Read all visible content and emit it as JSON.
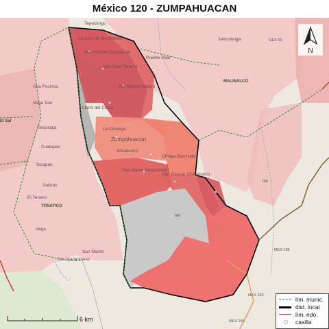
{
  "title": "México 120 - ZUMPAHUACAN",
  "place_labels": [
    "Tepetzingo",
    "La Cruz de los Pilares",
    "San Antonio Guadalupe",
    "San José Tenería",
    "Puente Palo",
    "Jalmolonga",
    "MALINALCO",
    "San Miguel Atenco",
    "Llano del Copal",
    "La Ciénega",
    "Zumpahuacan",
    "Ahuatenco",
    "Chiapa San Isidro",
    "San Mateo Despoblado",
    "San Gaspar Chiltamalco",
    "Ana Pocinca",
    "Vega San",
    "El Sal",
    "Tecorraca",
    "Coatepec",
    "Tecapan",
    "Salinas",
    "El Terrero",
    "TONATICO",
    "Vega",
    "San Martín",
    "Los Manantiales"
  ],
  "road_labels": [
    "166",
    "185",
    "MEX 55",
    "MEX 165",
    "MEX 165",
    "MEX 165"
  ],
  "legend": {
    "items": [
      {
        "label": "lím. munic.",
        "color": "#2e8b2e",
        "style": "dashed"
      },
      {
        "label": "dist. local",
        "color": "#000000",
        "style": "solid-thick"
      },
      {
        "label": "lím. edo.",
        "color": "#c0392b",
        "style": "solid"
      },
      {
        "label": "casilla",
        "color": "#aaaaaa",
        "style": "circle"
      }
    ]
  },
  "scale": {
    "label": "6 km"
  },
  "north": {
    "label": "N"
  },
  "colors": {
    "background_osm": "#ede8e0",
    "light_pink": "#f2c4c4",
    "mid_pink": "#e89a9a",
    "salmon": "#ef7f6f",
    "red": "#df6262",
    "dark_red": "#cc4c55",
    "grey_uncovered": "#c9c9c9",
    "municipal_border": "#2e8b2e",
    "district_border": "#000000",
    "state_border": "#c0392b"
  }
}
